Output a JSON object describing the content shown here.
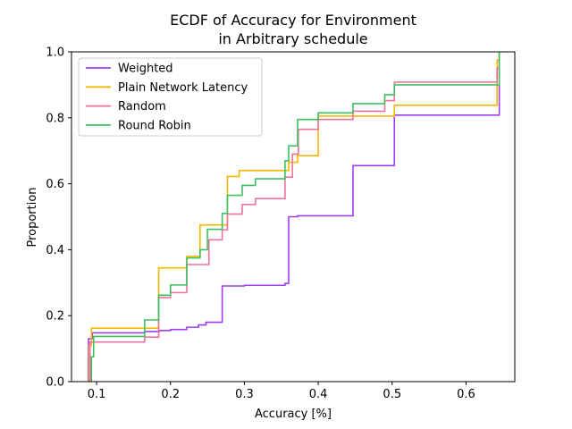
{
  "chart_data": {
    "type": "line",
    "title_lines": [
      "ECDF of Accuracy for Environment",
      "in Arbitrary schedule"
    ],
    "xlabel": "Accuracy [%]",
    "ylabel": "Proportion",
    "xlim": [
      0.066,
      0.666
    ],
    "ylim": [
      0,
      1
    ],
    "xticks": [
      0.1,
      0.2,
      0.3,
      0.4,
      0.5,
      0.6
    ],
    "xtick_labels": [
      "0.1",
      "0.2",
      "0.3",
      "0.4",
      "0.5",
      "0.6"
    ],
    "yticks": [
      0.0,
      0.2,
      0.4,
      0.6,
      0.8,
      1.0
    ],
    "ytick_labels": [
      "0.0",
      "0.2",
      "0.4",
      "0.6",
      "0.8",
      "1.0"
    ],
    "grid": false,
    "legend_position": "top-left",
    "series": [
      {
        "name": "Weighted",
        "color": "#9b3ff0",
        "steps": [
          [
            0.089,
            0.0
          ],
          [
            0.089,
            0.13
          ],
          [
            0.094,
            0.148
          ],
          [
            0.165,
            0.152
          ],
          [
            0.185,
            0.155
          ],
          [
            0.2,
            0.158
          ],
          [
            0.222,
            0.165
          ],
          [
            0.238,
            0.172
          ],
          [
            0.248,
            0.18
          ],
          [
            0.27,
            0.29
          ],
          [
            0.3,
            0.292
          ],
          [
            0.355,
            0.298
          ],
          [
            0.36,
            0.5
          ],
          [
            0.372,
            0.503
          ],
          [
            0.447,
            0.655
          ],
          [
            0.503,
            0.808
          ],
          [
            0.645,
            0.96
          ],
          [
            0.645,
            1.0
          ]
        ]
      },
      {
        "name": "Plain Network Latency",
        "color": "#f5b800",
        "steps": [
          [
            0.09,
            0.0
          ],
          [
            0.09,
            0.11
          ],
          [
            0.093,
            0.162
          ],
          [
            0.184,
            0.345
          ],
          [
            0.222,
            0.38
          ],
          [
            0.24,
            0.475
          ],
          [
            0.277,
            0.622
          ],
          [
            0.293,
            0.64
          ],
          [
            0.36,
            0.665
          ],
          [
            0.372,
            0.685
          ],
          [
            0.4,
            0.805
          ],
          [
            0.503,
            0.838
          ],
          [
            0.642,
            0.975
          ],
          [
            0.645,
            1.0
          ]
        ]
      },
      {
        "name": "Random",
        "color": "#f2719f",
        "steps": [
          [
            0.091,
            0.0
          ],
          [
            0.091,
            0.12
          ],
          [
            0.165,
            0.135
          ],
          [
            0.184,
            0.255
          ],
          [
            0.2,
            0.27
          ],
          [
            0.222,
            0.355
          ],
          [
            0.252,
            0.43
          ],
          [
            0.27,
            0.46
          ],
          [
            0.277,
            0.508
          ],
          [
            0.297,
            0.537
          ],
          [
            0.315,
            0.555
          ],
          [
            0.355,
            0.62
          ],
          [
            0.365,
            0.69
          ],
          [
            0.373,
            0.765
          ],
          [
            0.4,
            0.795
          ],
          [
            0.447,
            0.82
          ],
          [
            0.49,
            0.852
          ],
          [
            0.503,
            0.908
          ],
          [
            0.642,
            0.95
          ],
          [
            0.645,
            1.0
          ]
        ]
      },
      {
        "name": "Round Robin",
        "color": "#3cc060",
        "steps": [
          [
            0.093,
            0.0
          ],
          [
            0.093,
            0.075
          ],
          [
            0.096,
            0.137
          ],
          [
            0.165,
            0.187
          ],
          [
            0.184,
            0.262
          ],
          [
            0.2,
            0.293
          ],
          [
            0.222,
            0.375
          ],
          [
            0.24,
            0.4
          ],
          [
            0.25,
            0.462
          ],
          [
            0.27,
            0.51
          ],
          [
            0.277,
            0.565
          ],
          [
            0.297,
            0.595
          ],
          [
            0.315,
            0.615
          ],
          [
            0.355,
            0.67
          ],
          [
            0.36,
            0.715
          ],
          [
            0.372,
            0.795
          ],
          [
            0.4,
            0.815
          ],
          [
            0.447,
            0.843
          ],
          [
            0.49,
            0.87
          ],
          [
            0.503,
            0.9
          ],
          [
            0.645,
            0.94
          ],
          [
            0.645,
            1.0
          ]
        ]
      }
    ]
  }
}
